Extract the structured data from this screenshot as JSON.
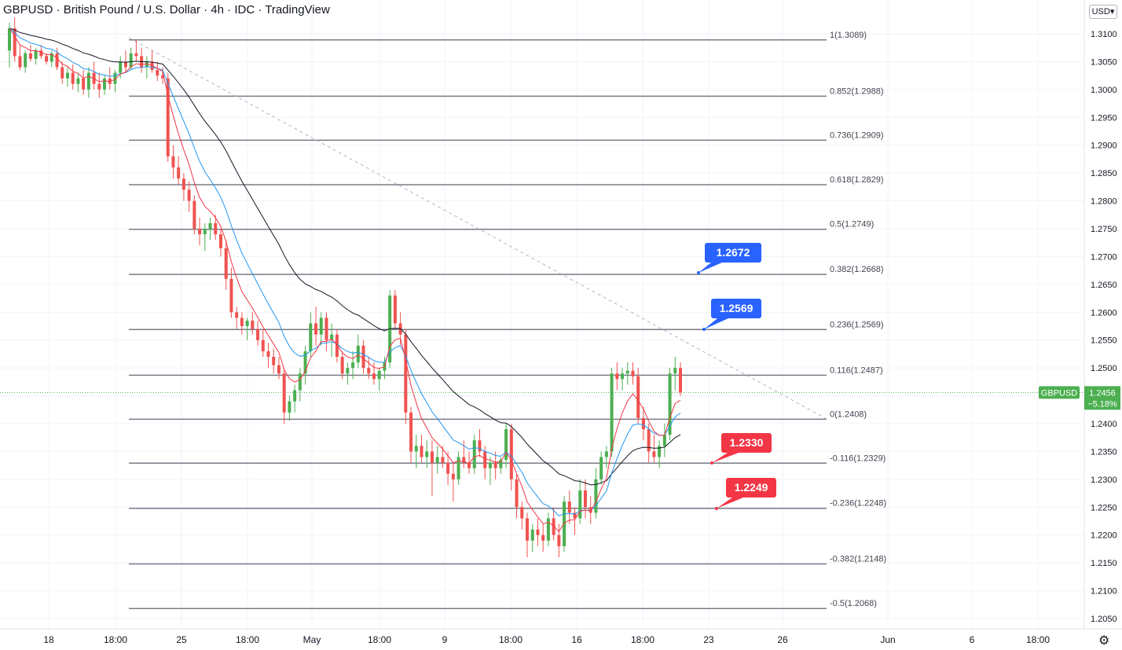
{
  "header": {
    "symbol": "GBPUSD",
    "name": "British Pound / U.S. Dollar",
    "interval": "4h",
    "source": "IDC",
    "platform": "TradingView",
    "sep": " · "
  },
  "currency_button": "USD",
  "chart_data": {
    "type": "candlestick",
    "ylim": [
      1.2025,
      1.315
    ],
    "y_ticks": [
      "1.3100",
      "1.3050",
      "1.3000",
      "1.2950",
      "1.2900",
      "1.2850",
      "1.2800",
      "1.2750",
      "1.2700",
      "1.2650",
      "1.2600",
      "1.2550",
      "1.2500",
      "1.2450",
      "1.2400",
      "1.2350",
      "1.2300",
      "1.2250",
      "1.2200",
      "1.2150",
      "1.2100",
      "1.2050"
    ],
    "x_ticks": [
      "18",
      "18:00",
      "25",
      "18:00",
      "May",
      "18:00",
      "9",
      "18:00",
      "16",
      "18:00",
      "23",
      "26",
      "Jun",
      "6",
      "18:00"
    ],
    "fib_levels": [
      {
        "ratio": "1",
        "price": 1.3089,
        "label": "1(1.3089)"
      },
      {
        "ratio": "0.852",
        "price": 1.2988,
        "label": "0.852(1.2988)"
      },
      {
        "ratio": "0.736",
        "price": 1.2909,
        "label": "0.736(1.2909)"
      },
      {
        "ratio": "0.618",
        "price": 1.2829,
        "label": "0.618(1.2829)"
      },
      {
        "ratio": "0.5",
        "price": 1.2749,
        "label": "0.5(1.2749)"
      },
      {
        "ratio": "0.382",
        "price": 1.2668,
        "label": "0.382(1.2668)"
      },
      {
        "ratio": "0.236",
        "price": 1.2569,
        "label": "0.236(1.2569)"
      },
      {
        "ratio": "0.116",
        "price": 1.2487,
        "label": "0.116(1.2487)"
      },
      {
        "ratio": "0",
        "price": 1.2408,
        "label": "0(1.2408)"
      },
      {
        "ratio": "-0.116",
        "price": 1.2329,
        "label": "-0.116(1.2329)"
      },
      {
        "ratio": "-0.236",
        "price": 1.2248,
        "label": "-0.236(1.2248)"
      },
      {
        "ratio": "-0.382",
        "price": 1.2148,
        "label": "-0.382(1.2148)"
      },
      {
        "ratio": "-0.5",
        "price": 1.2068,
        "label": "-0.5(1.2068)"
      }
    ],
    "callouts": [
      {
        "text": "1.2672",
        "color": "#2962ff"
      },
      {
        "text": "1.2569",
        "color": "#2962ff"
      },
      {
        "text": "1.2330",
        "color": "#f23645"
      },
      {
        "text": "1.2249",
        "color": "#f23645"
      }
    ],
    "last_price": {
      "symbol": "GBPUSD",
      "price": "1.2456",
      "change": "−5.18%",
      "value": 1.2456
    },
    "colors": {
      "up": "#26a69a",
      "up_fill": "#4caf50",
      "down": "#ef5350",
      "ma_fast": "#f23645",
      "ma_mid": "#2196f3",
      "ma_slow": "#131722",
      "fib": "#787b86",
      "trend": "#b2b5be",
      "price_line": "#4caf50"
    },
    "candles_ohlc": [
      [
        1.307,
        1.312,
        1.304,
        1.311
      ],
      [
        1.311,
        1.313,
        1.305,
        1.306
      ],
      [
        1.306,
        1.308,
        1.3035,
        1.304
      ],
      [
        1.304,
        1.307,
        1.303,
        1.3065
      ],
      [
        1.3065,
        1.308,
        1.305,
        1.3055
      ],
      [
        1.3055,
        1.3075,
        1.3045,
        1.307
      ],
      [
        1.307,
        1.308,
        1.3055,
        1.306
      ],
      [
        1.306,
        1.3065,
        1.3045,
        1.305
      ],
      [
        1.305,
        1.307,
        1.304,
        1.3065
      ],
      [
        1.3065,
        1.3075,
        1.3035,
        1.304
      ],
      [
        1.304,
        1.305,
        1.301,
        1.302
      ],
      [
        1.302,
        1.304,
        1.3005,
        1.303
      ],
      [
        1.303,
        1.3045,
        1.3,
        1.301
      ],
      [
        1.301,
        1.303,
        1.2995,
        1.302
      ],
      [
        1.302,
        1.3035,
        1.299,
        1.3
      ],
      [
        1.3,
        1.304,
        1.2985,
        1.303
      ],
      [
        1.303,
        1.305,
        1.3,
        1.301
      ],
      [
        1.301,
        1.303,
        1.2985,
        1.3
      ],
      [
        1.3,
        1.3025,
        1.299,
        1.302
      ],
      [
        1.302,
        1.304,
        1.3,
        1.301
      ],
      [
        1.301,
        1.3035,
        1.2995,
        1.303
      ],
      [
        1.303,
        1.306,
        1.302,
        1.305
      ],
      [
        1.305,
        1.307,
        1.303,
        1.304
      ],
      [
        1.304,
        1.3075,
        1.3035,
        1.3065
      ],
      [
        1.3065,
        1.309,
        1.305,
        1.306
      ],
      [
        1.306,
        1.3075,
        1.303,
        1.304
      ],
      [
        1.304,
        1.306,
        1.302,
        1.305
      ],
      [
        1.305,
        1.307,
        1.303,
        1.3035
      ],
      [
        1.3035,
        1.305,
        1.3015,
        1.3025
      ],
      [
        1.3025,
        1.304,
        1.301,
        1.302
      ],
      [
        1.302,
        1.303,
        1.287,
        1.288
      ],
      [
        1.288,
        1.29,
        1.284,
        1.286
      ],
      [
        1.286,
        1.288,
        1.283,
        1.284
      ],
      [
        1.284,
        1.285,
        1.28,
        1.282
      ],
      [
        1.282,
        1.2835,
        1.278,
        1.28
      ],
      [
        1.28,
        1.281,
        1.274,
        1.275
      ],
      [
        1.275,
        1.277,
        1.272,
        1.274
      ],
      [
        1.274,
        1.276,
        1.271,
        1.275
      ],
      [
        1.275,
        1.277,
        1.273,
        1.276
      ],
      [
        1.276,
        1.2775,
        1.273,
        1.274
      ],
      [
        1.274,
        1.275,
        1.27,
        1.2715
      ],
      [
        1.2715,
        1.273,
        1.264,
        1.266
      ],
      [
        1.266,
        1.268,
        1.259,
        1.26
      ],
      [
        1.26,
        1.261,
        1.257,
        1.259
      ],
      [
        1.259,
        1.26,
        1.256,
        1.2575
      ],
      [
        1.2575,
        1.259,
        1.255,
        1.2585
      ],
      [
        1.2585,
        1.26,
        1.256,
        1.257
      ],
      [
        1.257,
        1.2585,
        1.254,
        1.255
      ],
      [
        1.255,
        1.257,
        1.252,
        1.253
      ],
      [
        1.253,
        1.2545,
        1.25,
        1.252
      ],
      [
        1.252,
        1.2535,
        1.249,
        1.2505
      ],
      [
        1.2505,
        1.252,
        1.248,
        1.249
      ],
      [
        1.249,
        1.25,
        1.24,
        1.242
      ],
      [
        1.242,
        1.245,
        1.2405,
        1.244
      ],
      [
        1.244,
        1.247,
        1.242,
        1.246
      ],
      [
        1.246,
        1.25,
        1.244,
        1.249
      ],
      [
        1.249,
        1.254,
        1.247,
        1.253
      ],
      [
        1.253,
        1.26,
        1.252,
        1.258
      ],
      [
        1.258,
        1.261,
        1.254,
        1.256
      ],
      [
        1.256,
        1.26,
        1.254,
        1.259
      ],
      [
        1.259,
        1.26,
        1.253,
        1.255
      ],
      [
        1.255,
        1.258,
        1.252,
        1.256
      ],
      [
        1.256,
        1.257,
        1.251,
        1.252
      ],
      [
        1.252,
        1.253,
        1.248,
        1.249
      ],
      [
        1.249,
        1.251,
        1.247,
        1.25
      ],
      [
        1.25,
        1.253,
        1.248,
        1.251
      ],
      [
        1.251,
        1.256,
        1.25,
        1.254
      ],
      [
        1.254,
        1.255,
        1.249,
        1.25
      ],
      [
        1.25,
        1.252,
        1.248,
        1.249
      ],
      [
        1.249,
        1.251,
        1.247,
        1.248
      ],
      [
        1.248,
        1.25,
        1.246,
        1.2495
      ],
      [
        1.2495,
        1.252,
        1.248,
        1.251
      ],
      [
        1.251,
        1.264,
        1.25,
        1.263
      ],
      [
        1.263,
        1.264,
        1.257,
        1.258
      ],
      [
        1.258,
        1.26,
        1.254,
        1.256
      ],
      [
        1.256,
        1.257,
        1.24,
        1.242
      ],
      [
        1.242,
        1.243,
        1.233,
        1.235
      ],
      [
        1.235,
        1.238,
        1.232,
        1.236
      ],
      [
        1.236,
        1.238,
        1.233,
        1.234
      ],
      [
        1.234,
        1.237,
        1.232,
        1.235
      ],
      [
        1.235,
        1.237,
        1.227,
        1.233
      ],
      [
        1.233,
        1.236,
        1.231,
        1.234
      ],
      [
        1.234,
        1.236,
        1.232,
        1.233
      ],
      [
        1.233,
        1.235,
        1.229,
        1.231
      ],
      [
        1.231,
        1.233,
        1.226,
        1.23
      ],
      [
        1.23,
        1.235,
        1.229,
        1.234
      ],
      [
        1.234,
        1.237,
        1.232,
        1.233
      ],
      [
        1.233,
        1.235,
        1.231,
        1.232
      ],
      [
        1.232,
        1.238,
        1.231,
        1.237
      ],
      [
        1.237,
        1.239,
        1.234,
        1.235
      ],
      [
        1.235,
        1.236,
        1.23,
        1.232
      ],
      [
        1.232,
        1.234,
        1.229,
        1.233
      ],
      [
        1.233,
        1.235,
        1.23,
        1.232
      ],
      [
        1.232,
        1.234,
        1.231,
        1.2335
      ],
      [
        1.2335,
        1.24,
        1.232,
        1.239
      ],
      [
        1.239,
        1.24,
        1.228,
        1.23
      ],
      [
        1.23,
        1.231,
        1.223,
        1.225
      ],
      [
        1.225,
        1.226,
        1.221,
        1.223
      ],
      [
        1.223,
        1.224,
        1.216,
        1.219
      ],
      [
        1.219,
        1.222,
        1.217,
        1.221
      ],
      [
        1.221,
        1.223,
        1.218,
        1.22
      ],
      [
        1.22,
        1.222,
        1.217,
        1.219
      ],
      [
        1.219,
        1.224,
        1.218,
        1.223
      ],
      [
        1.223,
        1.225,
        1.219,
        1.22
      ],
      [
        1.22,
        1.222,
        1.216,
        1.218
      ],
      [
        1.218,
        1.227,
        1.217,
        1.226
      ],
      [
        1.226,
        1.228,
        1.222,
        1.224
      ],
      [
        1.224,
        1.225,
        1.22,
        1.223
      ],
      [
        1.223,
        1.23,
        1.222,
        1.228
      ],
      [
        1.228,
        1.23,
        1.223,
        1.225
      ],
      [
        1.225,
        1.227,
        1.222,
        1.224
      ],
      [
        1.224,
        1.232,
        1.223,
        1.23
      ],
      [
        1.23,
        1.235,
        1.229,
        1.234
      ],
      [
        1.234,
        1.236,
        1.232,
        1.235
      ],
      [
        1.235,
        1.25,
        1.234,
        1.249
      ],
      [
        1.249,
        1.251,
        1.246,
        1.248
      ],
      [
        1.248,
        1.25,
        1.246,
        1.249
      ],
      [
        1.249,
        1.251,
        1.247,
        1.2495
      ],
      [
        1.2495,
        1.251,
        1.247,
        1.2485
      ],
      [
        1.2485,
        1.25,
        1.24,
        1.241
      ],
      [
        1.241,
        1.243,
        1.237,
        1.239
      ],
      [
        1.239,
        1.24,
        1.233,
        1.235
      ],
      [
        1.235,
        1.238,
        1.233,
        1.234
      ],
      [
        1.234,
        1.237,
        1.232,
        1.236
      ],
      [
        1.236,
        1.24,
        1.234,
        1.238
      ],
      [
        1.238,
        1.25,
        1.237,
        1.249
      ],
      [
        1.249,
        1.252,
        1.246,
        1.25
      ],
      [
        1.25,
        1.251,
        1.245,
        1.2456
      ]
    ]
  }
}
